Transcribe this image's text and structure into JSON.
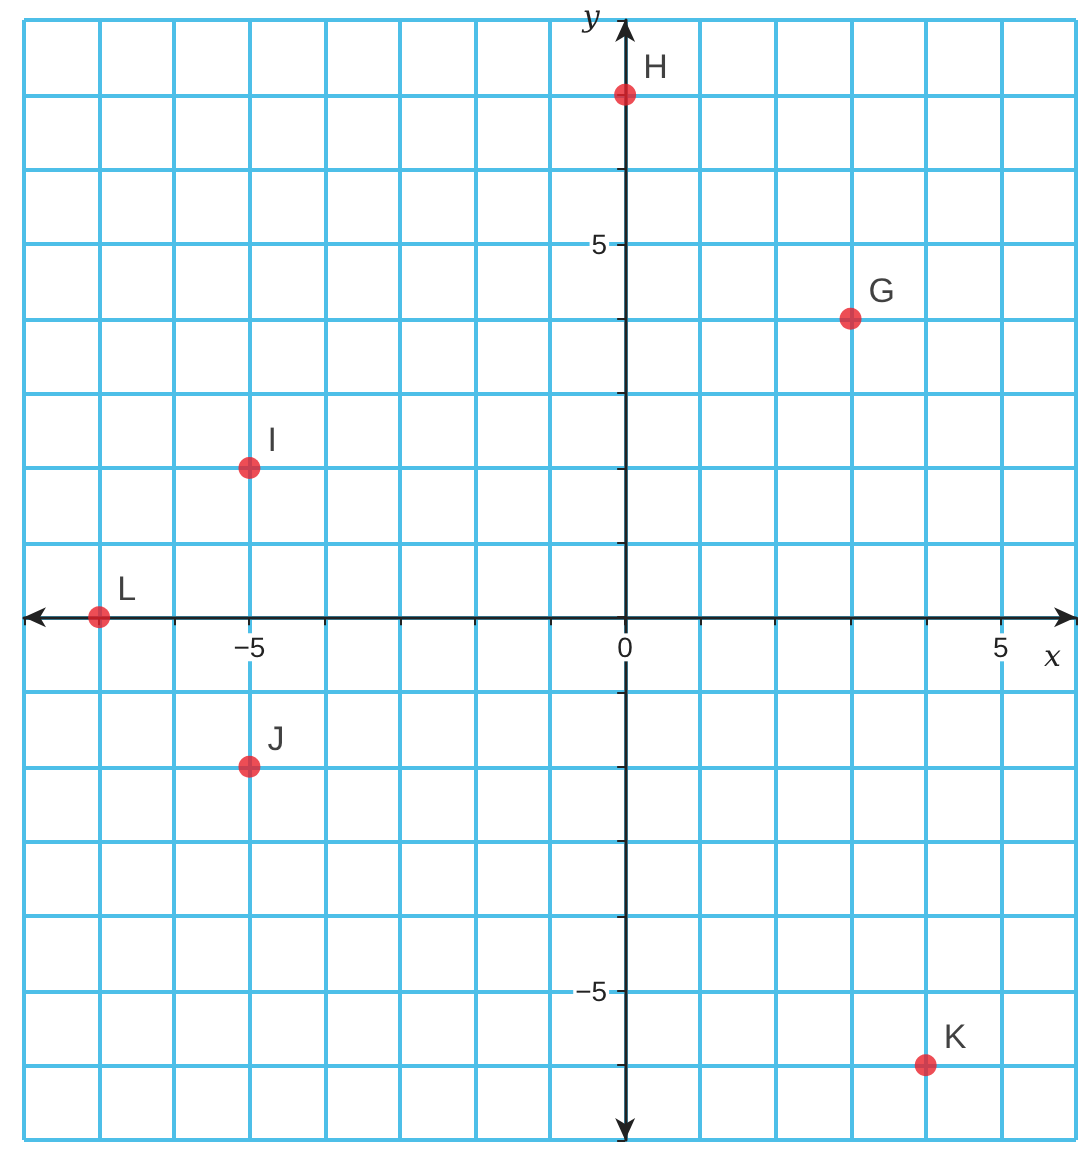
{
  "chart_data": {
    "type": "scatter",
    "xlabel": "x",
    "ylabel": "y",
    "x": [
      -7,
      -5,
      -5,
      0,
      3,
      4
    ],
    "series": [
      {
        "color": "#e8202a",
        "values": [
          0,
          2,
          -2,
          7,
          4,
          -6
        ]
      }
    ],
    "xlim": [
      -8,
      6
    ],
    "ylim": [
      -7,
      8
    ],
    "xticks": [
      {
        "value": -8,
        "label": null
      },
      {
        "value": -7,
        "label": null
      },
      {
        "value": -6,
        "label": null
      },
      {
        "value": -5,
        "label": "−5"
      },
      {
        "value": -4,
        "label": null
      },
      {
        "value": -3,
        "label": null
      },
      {
        "value": -2,
        "label": null
      },
      {
        "value": -1,
        "label": null
      },
      {
        "value": 0,
        "label": "0"
      },
      {
        "value": 1,
        "label": null
      },
      {
        "value": 2,
        "label": null
      },
      {
        "value": 3,
        "label": null
      },
      {
        "value": 4,
        "label": null
      },
      {
        "value": 5,
        "label": "5"
      },
      {
        "value": 6,
        "label": null
      }
    ],
    "yticks": [
      {
        "value": -7,
        "label": null
      },
      {
        "value": -6,
        "label": null
      },
      {
        "value": -5,
        "label": "−5"
      },
      {
        "value": -4,
        "label": null
      },
      {
        "value": -3,
        "label": null
      },
      {
        "value": -2,
        "label": null
      },
      {
        "value": -1,
        "label": null
      },
      {
        "value": 0,
        "label": null
      },
      {
        "value": 1,
        "label": null
      },
      {
        "value": 2,
        "label": null
      },
      {
        "value": 3,
        "label": null
      },
      {
        "value": 4,
        "label": null
      },
      {
        "value": 5,
        "label": "5"
      },
      {
        "value": 6,
        "label": null
      },
      {
        "value": 7,
        "label": null
      },
      {
        "value": 8,
        "label": null
      }
    ],
    "grid": true,
    "marker": "circle",
    "annotations": [
      {
        "text": "L",
        "x": -7,
        "y": 0
      },
      {
        "text": "I",
        "x": -5,
        "y": 2
      },
      {
        "text": "J",
        "x": -5,
        "y": -2
      },
      {
        "text": "H",
        "x": 0,
        "y": 7
      },
      {
        "text": "G",
        "x": 3,
        "y": 4
      },
      {
        "text": "K",
        "x": 4,
        "y": -6
      }
    ]
  }
}
